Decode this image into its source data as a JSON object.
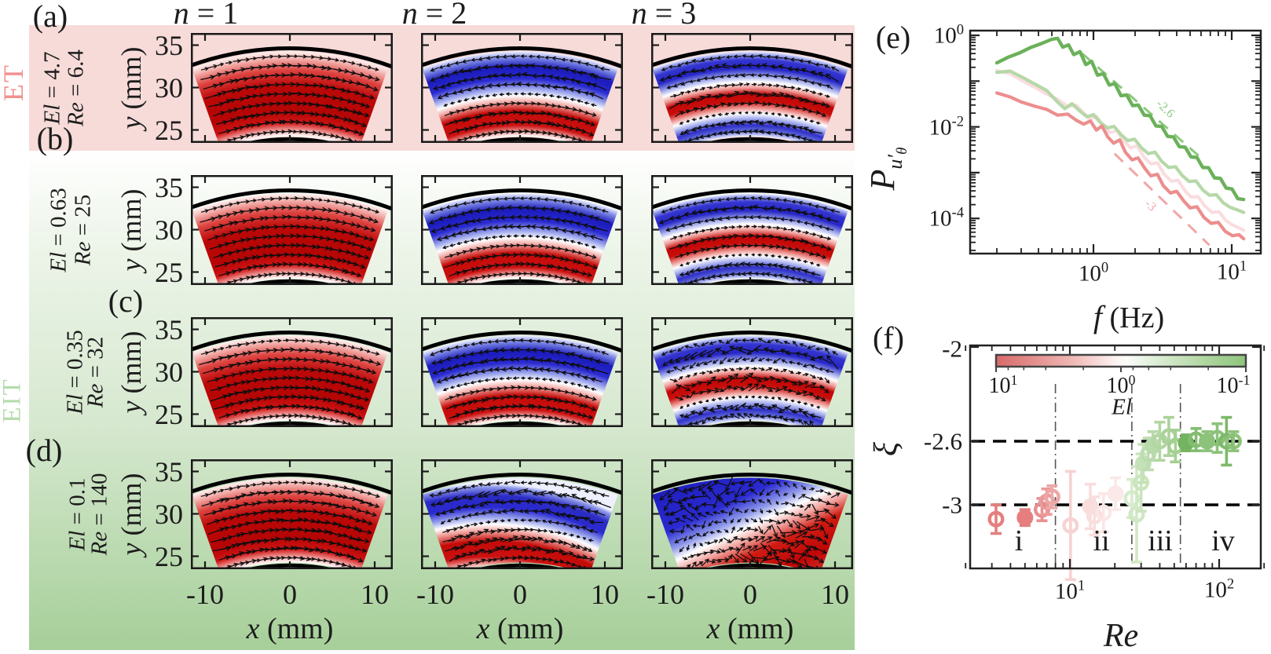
{
  "figure": {
    "regimes": [
      {
        "label": "ET",
        "color": "#f0908e"
      },
      {
        "label": "EIT",
        "color": "#b4dbaa"
      }
    ],
    "column_headers": [
      {
        "v": "n",
        "eq": " = 1"
      },
      {
        "v": "n",
        "eq": " = 2"
      },
      {
        "v": "n",
        "eq": " = 3"
      }
    ],
    "rows": [
      {
        "label": "(a)",
        "el_v": "El",
        "el_eq": " = 4.7",
        "re_v": "Re",
        "re_eq": " = 6.4",
        "regime": "ET"
      },
      {
        "label": "(b)",
        "el_v": "El",
        "el_eq": " = 0.63",
        "re_v": "Re",
        "re_eq": " = 25",
        "regime": "EIT"
      },
      {
        "label": "(c)",
        "el_v": "El",
        "el_eq": " = 0.35",
        "re_v": "Re",
        "re_eq": " = 32",
        "regime": "EIT"
      },
      {
        "label": "(d)",
        "el_v": "El",
        "el_eq": " = 0.1",
        "re_v": "Re",
        "re_eq": " = 140",
        "regime": "EIT"
      }
    ],
    "grid_axes": {
      "x_v": "x",
      "x_unit": " (mm)",
      "y_v": "y",
      "y_unit": " (mm)",
      "x_ticks": [
        "-10",
        "0",
        "10"
      ],
      "y_ticks": [
        "35",
        "30",
        "25"
      ]
    },
    "flow_panels": [
      {
        "row": "a",
        "n": 1,
        "pattern": "red",
        "chaos": 0.08,
        "seed": 11
      },
      {
        "row": "a",
        "n": 2,
        "pattern": "bluered",
        "chaos": 0.1,
        "seed": 22
      },
      {
        "row": "a",
        "n": 3,
        "pattern": "brb",
        "chaos": 0.22,
        "seed": 33
      },
      {
        "row": "b",
        "n": 1,
        "pattern": "red",
        "chaos": 0.05,
        "seed": 44
      },
      {
        "row": "b",
        "n": 2,
        "pattern": "bluered",
        "chaos": 0.07,
        "seed": 55
      },
      {
        "row": "b",
        "n": 3,
        "pattern": "brb",
        "chaos": 0.12,
        "seed": 66
      },
      {
        "row": "c",
        "n": 1,
        "pattern": "red",
        "chaos": 0.07,
        "seed": 77
      },
      {
        "row": "c",
        "n": 2,
        "pattern": "bluered",
        "chaos": 0.1,
        "seed": 88
      },
      {
        "row": "c",
        "n": 3,
        "pattern": "brb",
        "chaos": 0.55,
        "seed": 99
      },
      {
        "row": "d",
        "n": 1,
        "pattern": "red",
        "chaos": 0.12,
        "seed": 110
      },
      {
        "row": "d",
        "n": 2,
        "pattern": "tilt",
        "chaos": 0.25,
        "seed": 121
      },
      {
        "row": "d",
        "n": 3,
        "pattern": "diag",
        "chaos": 0.85,
        "seed": 132
      }
    ],
    "colors": {
      "band_positive": "#c00606",
      "band_negative": "#2222c4",
      "bg_pink": "#f6dbd9",
      "bg_green_deep": "#a6cf99"
    }
  },
  "chart_data": [
    {
      "type": "line",
      "id": "spectra",
      "panel_label": "(e)",
      "xlabel_v": "f",
      "xlabel_unit": " (Hz)",
      "ylabel": "P_{u'_theta}",
      "ylabel_parts": {
        "p": "P",
        "sub": "u′",
        "subsub": "θ"
      },
      "xscale": "log",
      "yscale": "log",
      "xlim": [
        0.13,
        15.2
      ],
      "ylim": [
        1.7e-05,
        1.26
      ],
      "x_tick_labels": [
        {
          "base": "10",
          "exp": "0",
          "value": 1
        },
        {
          "base": "10",
          "exp": "1",
          "value": 10
        }
      ],
      "y_tick_labels": [
        {
          "base": "10",
          "exp": "0",
          "value": 1
        },
        {
          "base": "10",
          "exp": "-2",
          "value": 0.01
        },
        {
          "base": "10",
          "exp": "-4",
          "value": 0.0001
        }
      ],
      "series": [
        {
          "name": "El = 0.63, Re = 25",
          "color": "#fadde0",
          "width": 4.2,
          "f": [
            0.2,
            0.25,
            0.3,
            0.38,
            0.46,
            0.55,
            0.65,
            0.75,
            0.85,
            0.95,
            1.05,
            1.18,
            1.32,
            1.48,
            1.65,
            1.85,
            2.07,
            2.32,
            2.6,
            2.9,
            3.25,
            3.65,
            4.1,
            4.6,
            5.1,
            5.7,
            6.4,
            7.2,
            8.1,
            9.0,
            10.1,
            11.3,
            12.2
          ],
          "P": [
            0.17,
            0.145,
            0.105,
            0.072,
            0.052,
            0.04,
            0.028,
            0.03,
            0.02,
            0.015,
            0.017,
            0.0105,
            0.0075,
            0.0082,
            0.005,
            0.0035,
            0.0038,
            0.0022,
            0.00155,
            0.00165,
            0.00092,
            0.00065,
            0.00068,
            0.0004,
            0.00029,
            0.0003,
            0.000185,
            0.000135,
            0.00014,
            9.2e-05,
            7.2e-05,
            6.2e-05,
            5.5e-05
          ]
        },
        {
          "name": "El = 0.35, Re = 32",
          "color": "#b6d8a8",
          "width": 4.2,
          "f": [
            0.2,
            0.25,
            0.3,
            0.38,
            0.46,
            0.55,
            0.62,
            0.7,
            0.8,
            0.9,
            1.0,
            1.12,
            1.26,
            1.41,
            1.58,
            1.77,
            1.98,
            2.22,
            2.49,
            2.79,
            3.12,
            3.5,
            3.92,
            4.39,
            4.92,
            5.51,
            6.17,
            6.91,
            7.74,
            8.67,
            9.71,
            10.9,
            12.2
          ],
          "P": [
            0.155,
            0.165,
            0.125,
            0.085,
            0.062,
            0.035,
            0.025,
            0.032,
            0.022,
            0.0165,
            0.0185,
            0.0125,
            0.0095,
            0.0102,
            0.0068,
            0.005,
            0.0054,
            0.0035,
            0.0026,
            0.0028,
            0.00175,
            0.0013,
            0.00135,
            0.00086,
            0.00064,
            0.00066,
            0.00042,
            0.00032,
            0.00033,
            0.00022,
            0.000175,
            0.000155,
            0.000135
          ]
        },
        {
          "name": "El = 4.7, Re = 6.4",
          "color": "#ec8e8e",
          "width": 4.2,
          "f": [
            0.2,
            0.25,
            0.3,
            0.38,
            0.46,
            0.55,
            0.65,
            0.75,
            0.85,
            0.95,
            1.05,
            1.15,
            1.27,
            1.4,
            1.55,
            1.7,
            1.9,
            2.1,
            2.35,
            2.6,
            2.9,
            3.2,
            3.6,
            4.0,
            4.5,
            5.0,
            5.6,
            6.3,
            7.1,
            8.0,
            9.0,
            10.1,
            11.3,
            12.2
          ],
          "P": [
            0.055,
            0.045,
            0.035,
            0.028,
            0.024,
            0.018,
            0.019,
            0.014,
            0.0115,
            0.0135,
            0.0085,
            0.0105,
            0.006,
            0.0044,
            0.0052,
            0.0028,
            0.0019,
            0.0021,
            0.00125,
            0.00085,
            0.00092,
            0.00052,
            0.00036,
            0.00039,
            0.00024,
            0.00017,
            0.00018,
            0.000105,
            7.8e-05,
            8.2e-05,
            5.2e-05,
            4.2e-05,
            4.4e-05,
            3.6e-05
          ]
        },
        {
          "name": "El = 0.1, Re = 140",
          "color": "#6bb15a",
          "width": 4.4,
          "f": [
            0.2,
            0.24,
            0.29,
            0.35,
            0.42,
            0.5,
            0.55,
            0.6,
            0.66,
            0.72,
            0.8,
            0.88,
            0.97,
            1.07,
            1.18,
            1.3,
            1.43,
            1.58,
            1.74,
            1.92,
            2.11,
            2.33,
            2.57,
            2.83,
            3.12,
            3.44,
            3.79,
            4.18,
            4.61,
            5.08,
            5.6,
            6.17,
            6.8,
            7.5,
            8.27,
            9.12,
            10.05,
            11.08,
            12.2
          ],
          "P": [
            0.25,
            0.33,
            0.41,
            0.54,
            0.66,
            0.82,
            0.86,
            0.55,
            0.62,
            0.38,
            0.44,
            0.23,
            0.27,
            0.135,
            0.145,
            0.082,
            0.088,
            0.048,
            0.05,
            0.029,
            0.03,
            0.018,
            0.0175,
            0.0105,
            0.0102,
            0.0062,
            0.006,
            0.0037,
            0.0036,
            0.0022,
            0.00215,
            0.0013,
            0.00128,
            0.00077,
            0.00075,
            0.00046,
            0.00044,
            0.00027,
            0.00026
          ]
        }
      ],
      "guides": [
        {
          "label": "-2.6",
          "color": "#8cc97e",
          "f": [
            0.83,
            5.9
          ],
          "P": [
            0.4,
            0.0022
          ]
        },
        {
          "label": "-3",
          "color": "#f2a6a6",
          "f": [
            1.42,
            6.9
          ],
          "P": [
            0.0026,
            2.6e-05
          ]
        }
      ]
    },
    {
      "type": "scatter",
      "id": "exponents",
      "panel_label": "(f)",
      "xlabel": "Re",
      "ylabel": "ξ",
      "xscale": "log",
      "xlim": [
        1.95,
        214
      ],
      "ylim": [
        -3.42,
        -1.99
      ],
      "x_tick_labels": [
        {
          "base": "10",
          "exp": "1",
          "value": 10
        },
        {
          "base": "10",
          "exp": "2",
          "value": 100
        }
      ],
      "y_tick_labels": [
        "-2",
        "-2.6",
        "-3"
      ],
      "y_tick_values": [
        -2,
        -2.6,
        -3
      ],
      "hlines": [
        -2.6,
        -3
      ],
      "vlines": [
        8,
        26,
        55
      ],
      "regions": [
        {
          "label": "i"
        },
        {
          "label": "ii"
        },
        {
          "label": "iii"
        },
        {
          "label": "iv"
        }
      ],
      "colorbar": {
        "label": "El",
        "ticks": [
          {
            "base": "10",
            "exp": "1",
            "value": 10
          },
          {
            "base": "10",
            "exp": "0",
            "value": 1
          },
          {
            "base": "10",
            "exp": "-1",
            "value": 0.1
          }
        ],
        "stops": [
          [
            0,
            "#d96a6a"
          ],
          [
            0.15,
            "#e38f8c"
          ],
          [
            0.32,
            "#f0bcb9"
          ],
          [
            0.48,
            "#fdf4f3"
          ],
          [
            0.52,
            "#fbfdfa"
          ],
          [
            0.68,
            "#d4e9ca"
          ],
          [
            0.85,
            "#add49d"
          ],
          [
            1,
            "#8ec57c"
          ]
        ]
      },
      "points": [
        {
          "re": 3.2,
          "xi": -3.09,
          "err": 0.09,
          "color": "#e57f7f",
          "filled": false
        },
        {
          "re": 5.0,
          "xi": -3.08,
          "err": 0.05,
          "color": "#e57f7f",
          "filled": true
        },
        {
          "re": 6.5,
          "xi": -3.03,
          "err": 0.07,
          "color": "#e98f8f",
          "filled": false
        },
        {
          "re": 7.0,
          "xi": -2.98,
          "err": 0.08,
          "color": "#eb9a9a",
          "filled": false
        },
        {
          "re": 7.6,
          "xi": -2.95,
          "err": 0.07,
          "color": "#eda7a7",
          "filled": false
        },
        {
          "re": 10.1,
          "xi": -3.13,
          "err": 0.34,
          "color": "#f7d2d2",
          "filled": false
        },
        {
          "re": 13.7,
          "xi": -3.01,
          "err": 0.14,
          "color": "#f9dcdc",
          "filled": true
        },
        {
          "re": 14.6,
          "xi": -3.07,
          "err": 0.12,
          "color": "#f9dede",
          "filled": false
        },
        {
          "re": 16.8,
          "xi": -3.05,
          "err": 0.12,
          "color": "#fbe6e6",
          "filled": false
        },
        {
          "re": 20.2,
          "xi": -2.93,
          "err": 0.1,
          "color": "#fbe8e8",
          "filled": true
        },
        {
          "re": 26.0,
          "xi": -2.96,
          "err": 0.12,
          "color": "#d6ebcc",
          "filled": false
        },
        {
          "re": 28.0,
          "xi": -3.06,
          "err": 0.3,
          "color": "#d0e8c5",
          "filled": false
        },
        {
          "re": 30.0,
          "xi": -2.86,
          "err": 0.18,
          "color": "#cbe5bf",
          "filled": false
        },
        {
          "re": 31.0,
          "xi": -2.74,
          "err": 0.12,
          "color": "#c4e1b7",
          "filled": true
        },
        {
          "re": 33.5,
          "xi": -2.68,
          "err": 0.1,
          "color": "#bedcb1",
          "filled": false
        },
        {
          "re": 36.0,
          "xi": -2.63,
          "err": 0.09,
          "color": "#b8d9a9",
          "filled": true
        },
        {
          "re": 40.0,
          "xi": -2.6,
          "err": 0.12,
          "color": "#b2d6a2",
          "filled": false
        },
        {
          "re": 46.0,
          "xi": -2.57,
          "err": 0.12,
          "color": "#abd29a",
          "filled": false
        },
        {
          "re": 51.0,
          "xi": -2.63,
          "err": 0.1,
          "color": "#a5cf93",
          "filled": false
        },
        {
          "re": 60.0,
          "xi": -2.61,
          "err": 0.05,
          "color": "#74b461",
          "filled": true
        },
        {
          "re": 70.0,
          "xi": -2.59,
          "err": 0.07,
          "color": "#83bd70",
          "filled": false
        },
        {
          "re": 83.0,
          "xi": -2.6,
          "err": 0.06,
          "color": "#8cc27a",
          "filled": true
        },
        {
          "re": 97.0,
          "xi": -2.58,
          "err": 0.09,
          "color": "#8cc27a",
          "filled": false
        },
        {
          "re": 112.0,
          "xi": -2.6,
          "err": 0.15,
          "color": "#7db96a",
          "filled": false
        },
        {
          "re": 125.0,
          "xi": -2.6,
          "err": 0.06,
          "color": "#8cc27a",
          "filled": false
        }
      ]
    }
  ]
}
